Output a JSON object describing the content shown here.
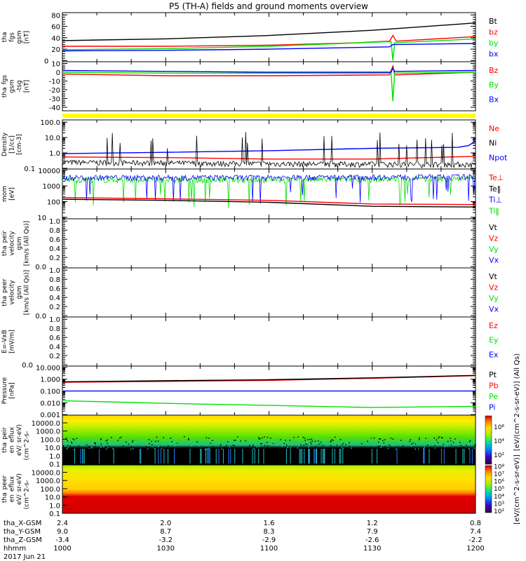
{
  "chart_data": {
    "type": "line",
    "title": "P5 (TH-A) fields and ground moments overview",
    "x_unit": "minutes after 10:00",
    "xlim": [
      0,
      120
    ],
    "panels": [
      {
        "id": "fgs-gsm",
        "ylabel": [
          "tha",
          "fgs",
          "gsm",
          "[nT]"
        ],
        "scale": "linear",
        "ylim": [
          -2,
          84
        ],
        "ticks": [
          {
            "v": 0,
            "l": "0"
          },
          {
            "v": 20,
            "l": "20"
          },
          {
            "v": 40,
            "l": "40"
          },
          {
            "v": 60,
            "l": "60"
          },
          {
            "v": 80,
            "l": "80"
          }
        ],
        "legend": [
          {
            "label": "Bt",
            "color": "#000000"
          },
          {
            "label": "bz",
            "color": "#ff0000"
          },
          {
            "label": "by",
            "color": "#00e000"
          },
          {
            "label": "bx",
            "color": "#0000ff"
          }
        ],
        "series": [
          {
            "name": "Bt",
            "color": "#000000",
            "points": [
              [
                0,
                35
              ],
              [
                30,
                38
              ],
              [
                60,
                44
              ],
              [
                90,
                53
              ],
              [
                120,
                66
              ]
            ]
          },
          {
            "name": "bz",
            "color": "#ff0000",
            "points": [
              [
                0,
                25
              ],
              [
                30,
                25
              ],
              [
                60,
                27
              ],
              [
                85,
                31
              ],
              [
                95,
                34
              ],
              [
                96,
                44
              ],
              [
                97,
                34
              ],
              [
                120,
                42
              ]
            ]
          },
          {
            "name": "by",
            "color": "#00e000",
            "points": [
              [
                0,
                19
              ],
              [
                30,
                21
              ],
              [
                60,
                25
              ],
              [
                94,
                33
              ],
              [
                95.5,
                33
              ],
              [
                96,
                0
              ],
              [
                96.5,
                31
              ],
              [
                120,
                38
              ]
            ]
          },
          {
            "name": "bx",
            "color": "#0000ff",
            "points": [
              [
                0,
                17
              ],
              [
                30,
                18
              ],
              [
                60,
                20
              ],
              [
                95,
                24
              ],
              [
                96,
                28
              ],
              [
                120,
                30
              ]
            ]
          }
        ]
      },
      {
        "id": "fgs-gsm-tsg",
        "ylabel": [
          "tha",
          "fgs",
          "gsm",
          "-tsg",
          "[nT]"
        ],
        "scale": "linear",
        "ylim": [
          -44,
          12
        ],
        "ticks": [
          {
            "v": -40,
            "l": "-40"
          },
          {
            "v": -30,
            "l": "-30"
          },
          {
            "v": -20,
            "l": "-20"
          },
          {
            "v": -10,
            "l": "-10"
          },
          {
            "v": 0,
            "l": "0"
          },
          {
            "v": 10,
            "l": "10"
          }
        ],
        "legend": [
          {
            "label": "Bz",
            "color": "#ff0000"
          },
          {
            "label": "By",
            "color": "#00e000"
          },
          {
            "label": "Bx",
            "color": "#0000ff"
          }
        ],
        "series": [
          {
            "name": "Bz",
            "color": "#ff0000",
            "points": [
              [
                0,
                -2
              ],
              [
                30,
                -4
              ],
              [
                60,
                -4
              ],
              [
                95,
                -3
              ],
              [
                96,
                7
              ],
              [
                96.5,
                -3
              ],
              [
                120,
                0
              ]
            ]
          },
          {
            "name": "By",
            "color": "#00e000",
            "points": [
              [
                0,
                0
              ],
              [
                30,
                -1
              ],
              [
                60,
                -1
              ],
              [
                95.5,
                -1
              ],
              [
                96,
                -33
              ],
              [
                96.5,
                -1
              ],
              [
                120,
                0
              ]
            ]
          },
          {
            "name": "Bx",
            "color": "#0000ff",
            "points": [
              [
                0,
                2
              ],
              [
                30,
                1
              ],
              [
                60,
                0
              ],
              [
                95.5,
                0
              ],
              [
                96,
                5
              ],
              [
                96.5,
                1
              ],
              [
                120,
                2
              ]
            ]
          }
        ]
      },
      {
        "id": "density",
        "ylabel": [
          "Density",
          "[1/cc]",
          "[cm-3]"
        ],
        "scale": "log",
        "ylim": [
          0.09,
          140
        ],
        "ticks": [
          {
            "v": 0.1,
            "l": "0.1"
          },
          {
            "v": 1,
            "l": "1.0"
          },
          {
            "v": 10,
            "l": "10.0"
          },
          {
            "v": 100,
            "l": "100.0"
          }
        ],
        "legend": [
          {
            "label": "Ne",
            "color": "#ff0000"
          },
          {
            "label": "Ni",
            "color": "#000000"
          },
          {
            "label": "Npot",
            "color": "#0000ff"
          }
        ],
        "series": [
          {
            "name": "Npot",
            "color": "#0000ff",
            "points": [
              [
                0,
                0.9
              ],
              [
                30,
                1.1
              ],
              [
                60,
                1.4
              ],
              [
                90,
                2.0
              ],
              [
                115,
                2.3
              ],
              [
                118,
                3
              ],
              [
                120,
                6
              ]
            ]
          },
          {
            "name": "Ne",
            "color": "#ff0000",
            "points": [
              [
                0,
                0.55
              ],
              [
                30,
                0.5
              ],
              [
                60,
                0.4
              ],
              [
                90,
                0.4
              ],
              [
                120,
                0.6
              ]
            ]
          },
          {
            "name": "Ni",
            "color": "#000000",
            "noise": true,
            "points": [
              [
                0,
                0.25
              ],
              [
                60,
                0.2
              ],
              [
                120,
                0.18
              ]
            ]
          }
        ]
      },
      {
        "id": "temperature",
        "ylabel": [
          "mom",
          "[eV]"
        ],
        "scale": "log",
        "ylim": [
          8,
          12000
        ],
        "ticks": [
          {
            "v": 10,
            "l": "10"
          },
          {
            "v": 100,
            "l": "100"
          },
          {
            "v": 1000,
            "l": "1000"
          },
          {
            "v": 10000,
            "l": "10000"
          }
        ],
        "legend": [
          {
            "label": "Te⊥",
            "color": "#ff0000"
          },
          {
            "label": "Te‖",
            "color": "#000000"
          },
          {
            "label": "Ti⊥",
            "color": "#0000ff"
          },
          {
            "label": "Ti‖",
            "color": "#00e000"
          }
        ],
        "series": [
          {
            "name": "Ti‖",
            "color": "#00e000",
            "noise": true,
            "points": [
              [
                0,
                2500
              ],
              [
                60,
                2500
              ],
              [
                120,
                3000
              ]
            ]
          },
          {
            "name": "Ti⊥",
            "color": "#0000ff",
            "noise": true,
            "points": [
              [
                0,
                3500
              ],
              [
                60,
                3500
              ],
              [
                120,
                4000
              ]
            ]
          },
          {
            "name": "Te⊥",
            "color": "#ff0000",
            "points": [
              [
                0,
                180
              ],
              [
                30,
                150
              ],
              [
                60,
                120
              ],
              [
                90,
                70
              ],
              [
                120,
                65
              ]
            ]
          },
          {
            "name": "Te‖",
            "color": "#000000",
            "points": [
              [
                0,
                140
              ],
              [
                30,
                120
              ],
              [
                60,
                90
              ],
              [
                90,
                50
              ],
              [
                120,
                45
              ]
            ]
          }
        ]
      },
      {
        "id": "peir-velocity",
        "ylabel": [
          "tha",
          "peir",
          "velocity",
          "gsm",
          "[km/s (All Qs)]"
        ],
        "scale": "linear",
        "ylim": [
          -0.03,
          1.05
        ],
        "ticks": [
          {
            "v": 0,
            "l": "0.0"
          },
          {
            "v": 0.2,
            "l": "0.2"
          },
          {
            "v": 0.4,
            "l": "0.4"
          },
          {
            "v": 0.6,
            "l": "0.6"
          },
          {
            "v": 0.8,
            "l": "0.8"
          },
          {
            "v": 1,
            "l": "1.0"
          }
        ],
        "legend": [
          {
            "label": "Vt",
            "color": "#000000"
          },
          {
            "label": "Vz",
            "color": "#ff0000"
          },
          {
            "label": "Vy",
            "color": "#00e000"
          },
          {
            "label": "Vx",
            "color": "#0000ff"
          }
        ],
        "series": []
      },
      {
        "id": "peer-velocity",
        "ylabel": [
          "tha",
          "peer",
          "velocity",
          "gsm",
          "[km/s (All Qs)]"
        ],
        "scale": "linear",
        "ylim": [
          -0.03,
          1.05
        ],
        "ticks": [
          {
            "v": 0,
            "l": "0.0"
          },
          {
            "v": 0.2,
            "l": "0.2"
          },
          {
            "v": 0.4,
            "l": "0.4"
          },
          {
            "v": 0.6,
            "l": "0.6"
          },
          {
            "v": 0.8,
            "l": "0.8"
          },
          {
            "v": 1,
            "l": "1.0"
          }
        ],
        "legend": [
          {
            "label": "Vt",
            "color": "#000000"
          },
          {
            "label": "Vz",
            "color": "#ff0000"
          },
          {
            "label": "Vy",
            "color": "#00e000"
          },
          {
            "label": "Vx",
            "color": "#0000ff"
          }
        ],
        "series": []
      },
      {
        "id": "efield",
        "ylabel": [
          "E=-VxB",
          "[mV/m]"
        ],
        "scale": "linear",
        "ylim": [
          -0.03,
          1.05
        ],
        "ticks": [
          {
            "v": 0,
            "l": "0.0"
          },
          {
            "v": 0.2,
            "l": "0.2"
          },
          {
            "v": 0.4,
            "l": "0.4"
          },
          {
            "v": 0.6,
            "l": "0.6"
          },
          {
            "v": 0.8,
            "l": "0.8"
          },
          {
            "v": 1,
            "l": "1.0"
          }
        ],
        "legend": [
          {
            "label": "Ez",
            "color": "#ff0000"
          },
          {
            "label": "Ey",
            "color": "#00e000"
          },
          {
            "label": "Ex",
            "color": "#0000ff"
          }
        ],
        "series": []
      },
      {
        "id": "pressure",
        "ylabel": [
          "Pressure",
          "[nPa]"
        ],
        "scale": "log",
        "ylim": [
          0.0009,
          13
        ],
        "ticks": [
          {
            "v": 0.001,
            "l": "0.001"
          },
          {
            "v": 0.01,
            "l": "0.010"
          },
          {
            "v": 0.1,
            "l": "0.100"
          },
          {
            "v": 1,
            "l": "1.000"
          },
          {
            "v": 10,
            "l": "10.000"
          }
        ],
        "legend": [
          {
            "label": "Pt",
            "color": "#000000"
          },
          {
            "label": "Pb",
            "color": "#ff0000"
          },
          {
            "label": "Pe",
            "color": "#00e000"
          },
          {
            "label": "Pi",
            "color": "#0000ff"
          }
        ],
        "series": [
          {
            "name": "Pi",
            "color": "#0000ff",
            "points": [
              [
                0,
                0.1
              ],
              [
                60,
                0.1
              ],
              [
                120,
                0.1
              ]
            ]
          },
          {
            "name": "Pe",
            "color": "#00e000",
            "points": [
              [
                0,
                0.015
              ],
              [
                30,
                0.009
              ],
              [
                60,
                0.006
              ],
              [
                90,
                0.004
              ],
              [
                120,
                0.005
              ]
            ]
          },
          {
            "name": "Pb",
            "color": "#ff0000",
            "points": [
              [
                0,
                0.55
              ],
              [
                30,
                0.65
              ],
              [
                60,
                0.8
              ],
              [
                90,
                1.2
              ],
              [
                120,
                2.0
              ]
            ]
          },
          {
            "name": "Pt",
            "color": "#000000",
            "points": [
              [
                0,
                0.6
              ],
              [
                30,
                0.75
              ],
              [
                60,
                0.9
              ],
              [
                90,
                1.3
              ],
              [
                120,
                2.1
              ]
            ]
          }
        ]
      }
    ],
    "spectrograms": [
      {
        "id": "peir-eflux",
        "ylabel": [
          "tha",
          "peir",
          "en",
          "eflux",
          "eV/",
          "(cm^2-s-",
          "sr-eV)"
        ],
        "ticks": [
          "0.1",
          "1.0",
          "10.0",
          "100.0",
          "1000.0",
          "10000.0"
        ],
        "colorbar_label": "[eV/(cm^2-s-sr-eV)] (All Qs)",
        "colorbar_ticks": [
          "10²",
          "10⁴",
          "10⁶"
        ]
      },
      {
        "id": "peer-eflux",
        "ylabel": [
          "tha",
          "peer",
          "en",
          "eflux",
          "eV/",
          "(cm^2-s-",
          "sr-eV)"
        ],
        "ticks": [
          "0.1",
          "1.0",
          "10.0",
          "100.0",
          "1000.0",
          "10000.0"
        ],
        "colorbar_label": "[eV/(cm^2-s-sr-eV)]",
        "colorbar_ticks": [
          "10²",
          "10³",
          "10⁴",
          "10⁵",
          "10⁶",
          "10⁷",
          "10⁸"
        ]
      }
    ],
    "x_axis": {
      "rows": [
        {
          "label": "tha_X-GSM",
          "values": [
            "2.4",
            "2.0",
            "1.6",
            "1.2",
            "0.8"
          ]
        },
        {
          "label": "tha_Y-GSM",
          "values": [
            "9.0",
            "8.7",
            "8.3",
            "7.9",
            "7.4"
          ]
        },
        {
          "label": "tha_Z-GSM",
          "values": [
            "-3.4",
            "-3.2",
            "-2.9",
            "-2.6",
            "-2.2"
          ]
        },
        {
          "label": "hhmm",
          "values": [
            "1000",
            "1030",
            "1100",
            "1130",
            "1200"
          ]
        }
      ],
      "tick_minutes": [
        0,
        30,
        60,
        90,
        120
      ],
      "date": "2017 Jun 21"
    }
  }
}
